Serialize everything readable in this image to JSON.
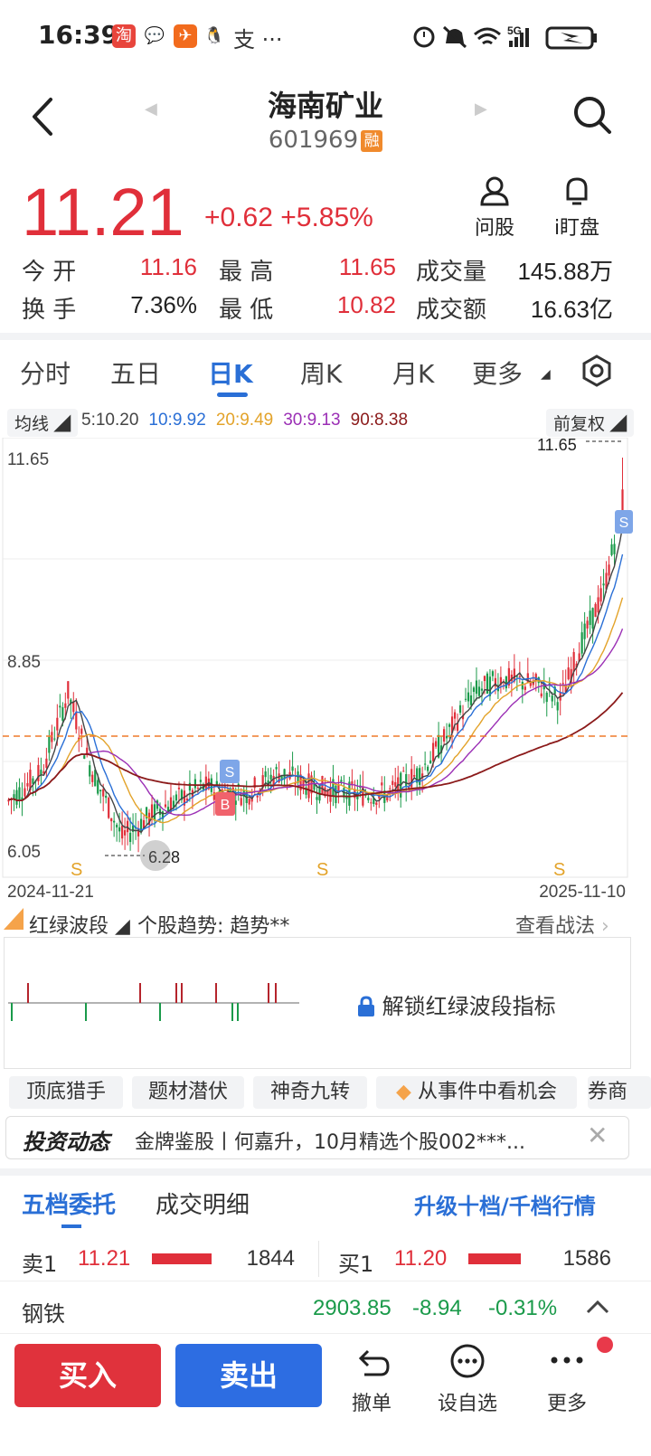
{
  "status_bar": {
    "time": "16:39",
    "extra": "支 ···",
    "network": "5G"
  },
  "header": {
    "title": "海南矿业",
    "code": "601969",
    "margin_badge": "融"
  },
  "quote": {
    "price": "11.21",
    "change": "+0.62 +5.85%",
    "ask_label": "问股",
    "watch_label": "i盯盘",
    "rows": [
      [
        {
          "k": "今 开",
          "v": "11.16",
          "c": "red"
        },
        {
          "k": "最 高",
          "v": "11.65",
          "c": "red"
        },
        {
          "k": "成交量",
          "v": "145.88万",
          "c": "dark"
        }
      ],
      [
        {
          "k": "换 手",
          "v": "7.36%",
          "c": "dark"
        },
        {
          "k": "最 低",
          "v": "10.82",
          "c": "red"
        },
        {
          "k": "成交额",
          "v": "16.63亿",
          "c": "dark"
        }
      ]
    ]
  },
  "tabs": [
    "分时",
    "五日",
    "日K",
    "周K",
    "月K",
    "更多"
  ],
  "active_tab": "日K",
  "ma_legend": {
    "label": "均线",
    "items": [
      {
        "text": "5:10.20",
        "color": "#444444"
      },
      {
        "text": "10:9.92",
        "color": "#2a6fd6"
      },
      {
        "text": "20:9.49",
        "color": "#e3a32a"
      },
      {
        "text": "30:9.13",
        "color": "#9b2fb5"
      },
      {
        "text": "90:8.38",
        "color": "#8b1a1a"
      }
    ],
    "adjust": "前复权"
  },
  "chart_data": {
    "type": "candlestick",
    "y_labels": [
      "11.65",
      "8.85",
      "6.05"
    ],
    "ylim": [
      6.05,
      11.65
    ],
    "x_start": "2024-11-21",
    "x_end": "2025-11-10",
    "max_marker": "11.65",
    "min_marker": "6.28",
    "signal_labels": {
      "buy": "B",
      "sell": "S"
    },
    "ref_line_color": "#ef7a2a",
    "colors": {
      "up": "#e02f3a",
      "down": "#1a9a4a",
      "ma5": "#444444",
      "ma10": "#2a6fd6",
      "ma20": "#e3a32a",
      "ma30": "#9b2fb5",
      "ma90": "#8b1a1a"
    }
  },
  "indicator": {
    "name": "红绿波段",
    "trend_label": "个股趋势: 趋势**",
    "strategy_link": "查看战法",
    "unlock_text": "解锁红绿波段指标"
  },
  "tags": [
    "顶底猎手",
    "题材潜伏",
    "神奇九转",
    "从事件中看机会",
    "券商"
  ],
  "news": {
    "badge": "投资动态",
    "text": "金牌鉴股丨何嘉升，10月精选个股002***..."
  },
  "orderbook": {
    "tabs": [
      "五档委托",
      "成交明细"
    ],
    "upgrade": "升级十档/千档行情",
    "sell1": {
      "label": "卖1",
      "price": "11.21",
      "vol": "1844"
    },
    "buy1": {
      "label": "买1",
      "price": "11.20",
      "vol": "1586"
    }
  },
  "sector": {
    "name": "钢铁",
    "index": "2903.85",
    "change": "-8.94",
    "pct": "-0.31%"
  },
  "bottom": {
    "buy": "买入",
    "sell": "卖出",
    "cancel": "撤单",
    "watchlist": "设自选",
    "more": "更多"
  }
}
